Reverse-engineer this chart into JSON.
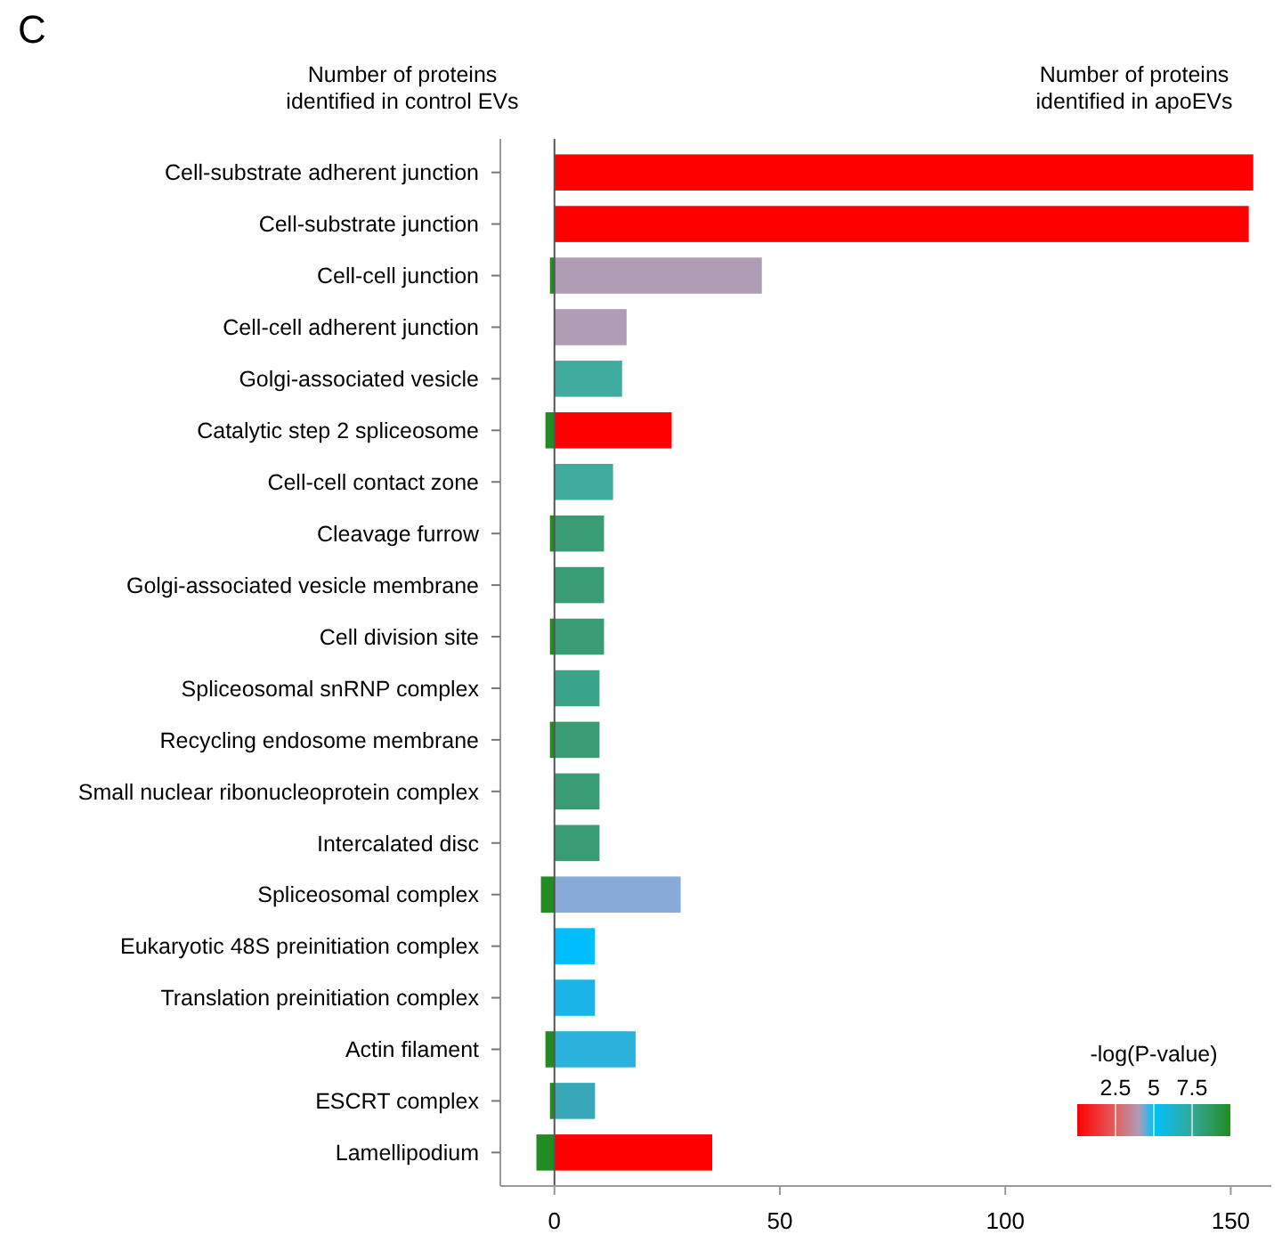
{
  "chart_data": {
    "type": "bar",
    "orientation": "horizontal",
    "categories": [
      "Cell-substrate adherent junction",
      "Cell-substrate junction",
      "Cell-cell junction",
      "Cell-cell adherent junction",
      "Golgi-associated vesicle",
      "Catalytic step 2 spliceosome",
      "Cell-cell contact zone",
      "Cleavage furrow",
      "Golgi-associated vesicle membrane",
      "Cell division site",
      "Spliceosomal snRNP complex",
      "Recycling endosome membrane",
      "Small nuclear ribonucleoprotein complex",
      "Intercalated disc",
      "Spliceosomal complex",
      "Eukaryotic 48S preinitiation complex",
      "Translation preinitiation complex",
      "Actin filament",
      "ESCRT complex",
      "Lamellipodium"
    ],
    "series": [
      {
        "values": [
          null,
          null,
          -1,
          null,
          null,
          -2,
          null,
          -1,
          null,
          -1,
          null,
          -1,
          null,
          null,
          -3,
          null,
          null,
          -2,
          -1,
          -4
        ],
        "color": "#228b22"
      },
      {
        "values": [
          155,
          154,
          46,
          16,
          15,
          26,
          13,
          11,
          11,
          11,
          10,
          10,
          10,
          10,
          28,
          9,
          9,
          18,
          9,
          35
        ],
        "colors": [
          "#ff0000",
          "#ff0000",
          "#b09cb4",
          "#b09cb4",
          "#40aca0",
          "#ff0000",
          "#40aca0",
          "#3a9c74",
          "#3a9c74",
          "#3a9c74",
          "#3aa488",
          "#3a9c74",
          "#3a9c74",
          "#3a9c74",
          "#88aad8",
          "#00bfff",
          "#1ab4ea",
          "#2ab2dc",
          "#38a8b8",
          "#ff0000"
        ]
      }
    ],
    "xlim": [
      -12,
      159
    ],
    "xticks": [
      0,
      50,
      100,
      150
    ],
    "annotations": [
      "C",
      "Number of proteins\nidentified in control EVs",
      "Number of proteins\nidentified in apoEVs",
      "-log(P-value)",
      "2.5",
      "5",
      "7.5"
    ]
  }
}
